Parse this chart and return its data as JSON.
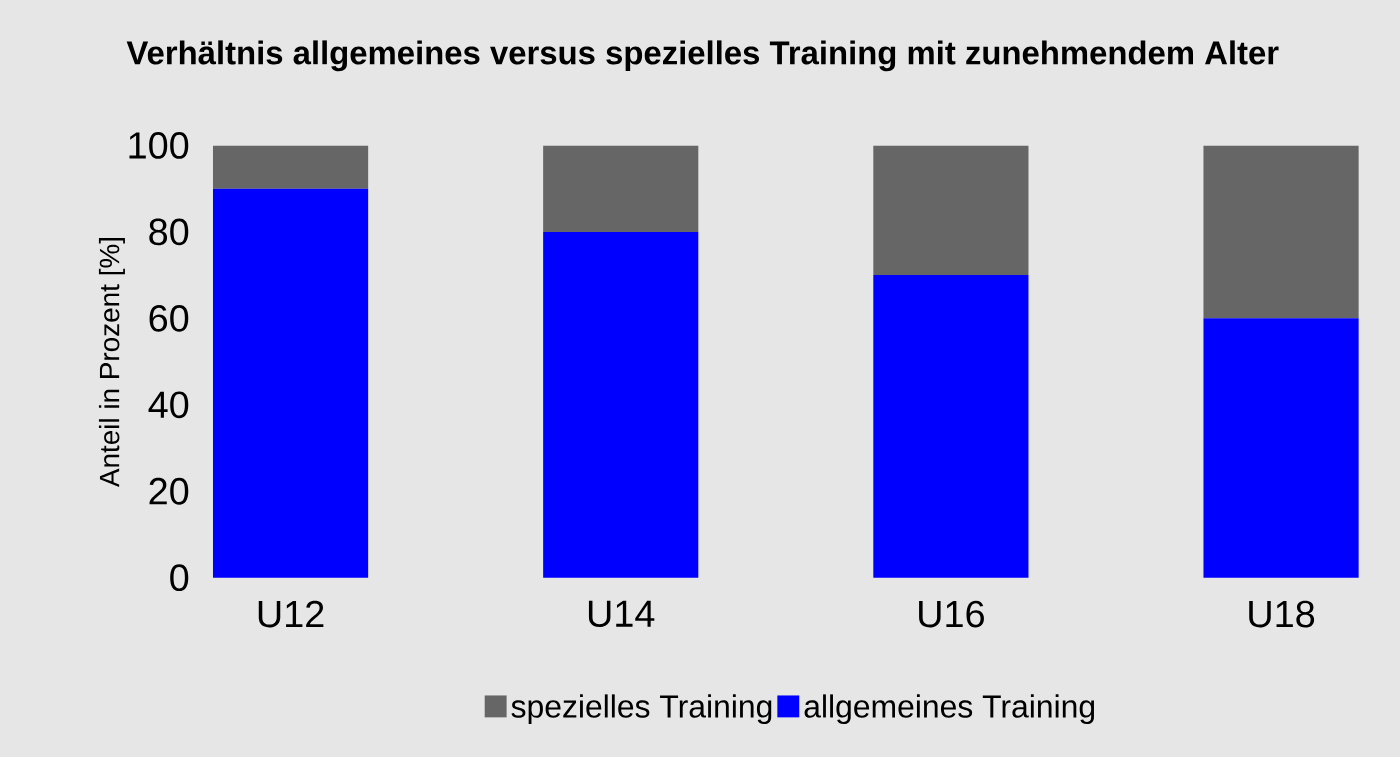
{
  "chart_data": {
    "type": "bar",
    "title": "Verhältnis allgemeines versus spezielles Training mit zunehmendem Alter",
    "ylabel": "Anteil in Prozent [%]",
    "categories": [
      "U12",
      "U14",
      "U16",
      "U18"
    ],
    "series": [
      {
        "name": "allgemeines Training",
        "color": "#0000ff",
        "values": [
          90,
          80,
          70,
          60
        ]
      },
      {
        "name": "spezielles Training",
        "color": "#666666",
        "values": [
          10,
          20,
          30,
          40
        ]
      }
    ],
    "stacked": true,
    "ylim": [
      0,
      100
    ],
    "yticks": [
      0,
      20,
      40,
      60,
      80,
      100
    ],
    "legend": "bottom"
  }
}
